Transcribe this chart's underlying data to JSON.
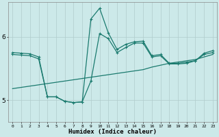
{
  "xlabel": "Humidex (Indice chaleur)",
  "background_color": "#cce9e9",
  "grid_color": "#b0cccc",
  "line_color": "#1a7a6e",
  "x_ticks": [
    0,
    1,
    2,
    3,
    4,
    5,
    6,
    7,
    8,
    9,
    10,
    11,
    12,
    13,
    14,
    15,
    16,
    17,
    18,
    19,
    20,
    21,
    22,
    23
  ],
  "y_ticks": [
    5,
    6
  ],
  "ylim": [
    4.65,
    6.55
  ],
  "xlim": [
    -0.5,
    23.5
  ],
  "line1_x": [
    0,
    1,
    2,
    3,
    4,
    5,
    6,
    7,
    8,
    9,
    10,
    11,
    12,
    13,
    14,
    15,
    16,
    17,
    18,
    19,
    20,
    21,
    22,
    23
  ],
  "line1_y": [
    5.72,
    5.71,
    5.7,
    5.65,
    5.05,
    5.05,
    4.98,
    4.96,
    4.97,
    5.3,
    6.05,
    5.97,
    5.75,
    5.83,
    5.9,
    5.9,
    5.68,
    5.7,
    5.57,
    5.57,
    5.58,
    5.62,
    5.72,
    5.75
  ],
  "line2_x": [
    0,
    1,
    2,
    3,
    4,
    5,
    6,
    7,
    8,
    9,
    10,
    11,
    12,
    13,
    14,
    15,
    16,
    17,
    18,
    19,
    20,
    21,
    22,
    23
  ],
  "line2_y": [
    5.18,
    5.2,
    5.22,
    5.24,
    5.26,
    5.28,
    5.3,
    5.32,
    5.34,
    5.36,
    5.38,
    5.4,
    5.42,
    5.44,
    5.46,
    5.48,
    5.52,
    5.55,
    5.58,
    5.6,
    5.62,
    5.64,
    5.68,
    5.72
  ],
  "line3_x": [
    0,
    1,
    2,
    3,
    4,
    5,
    6,
    7,
    8,
    9,
    10,
    11,
    12,
    13,
    14,
    15,
    16,
    17,
    18,
    19,
    20,
    21,
    22,
    23
  ],
  "line3_y": [
    5.75,
    5.74,
    5.73,
    5.68,
    5.05,
    5.05,
    4.98,
    4.96,
    4.97,
    6.28,
    6.45,
    6.06,
    5.8,
    5.88,
    5.92,
    5.93,
    5.7,
    5.72,
    5.58,
    5.58,
    5.6,
    5.62,
    5.74,
    5.78
  ]
}
